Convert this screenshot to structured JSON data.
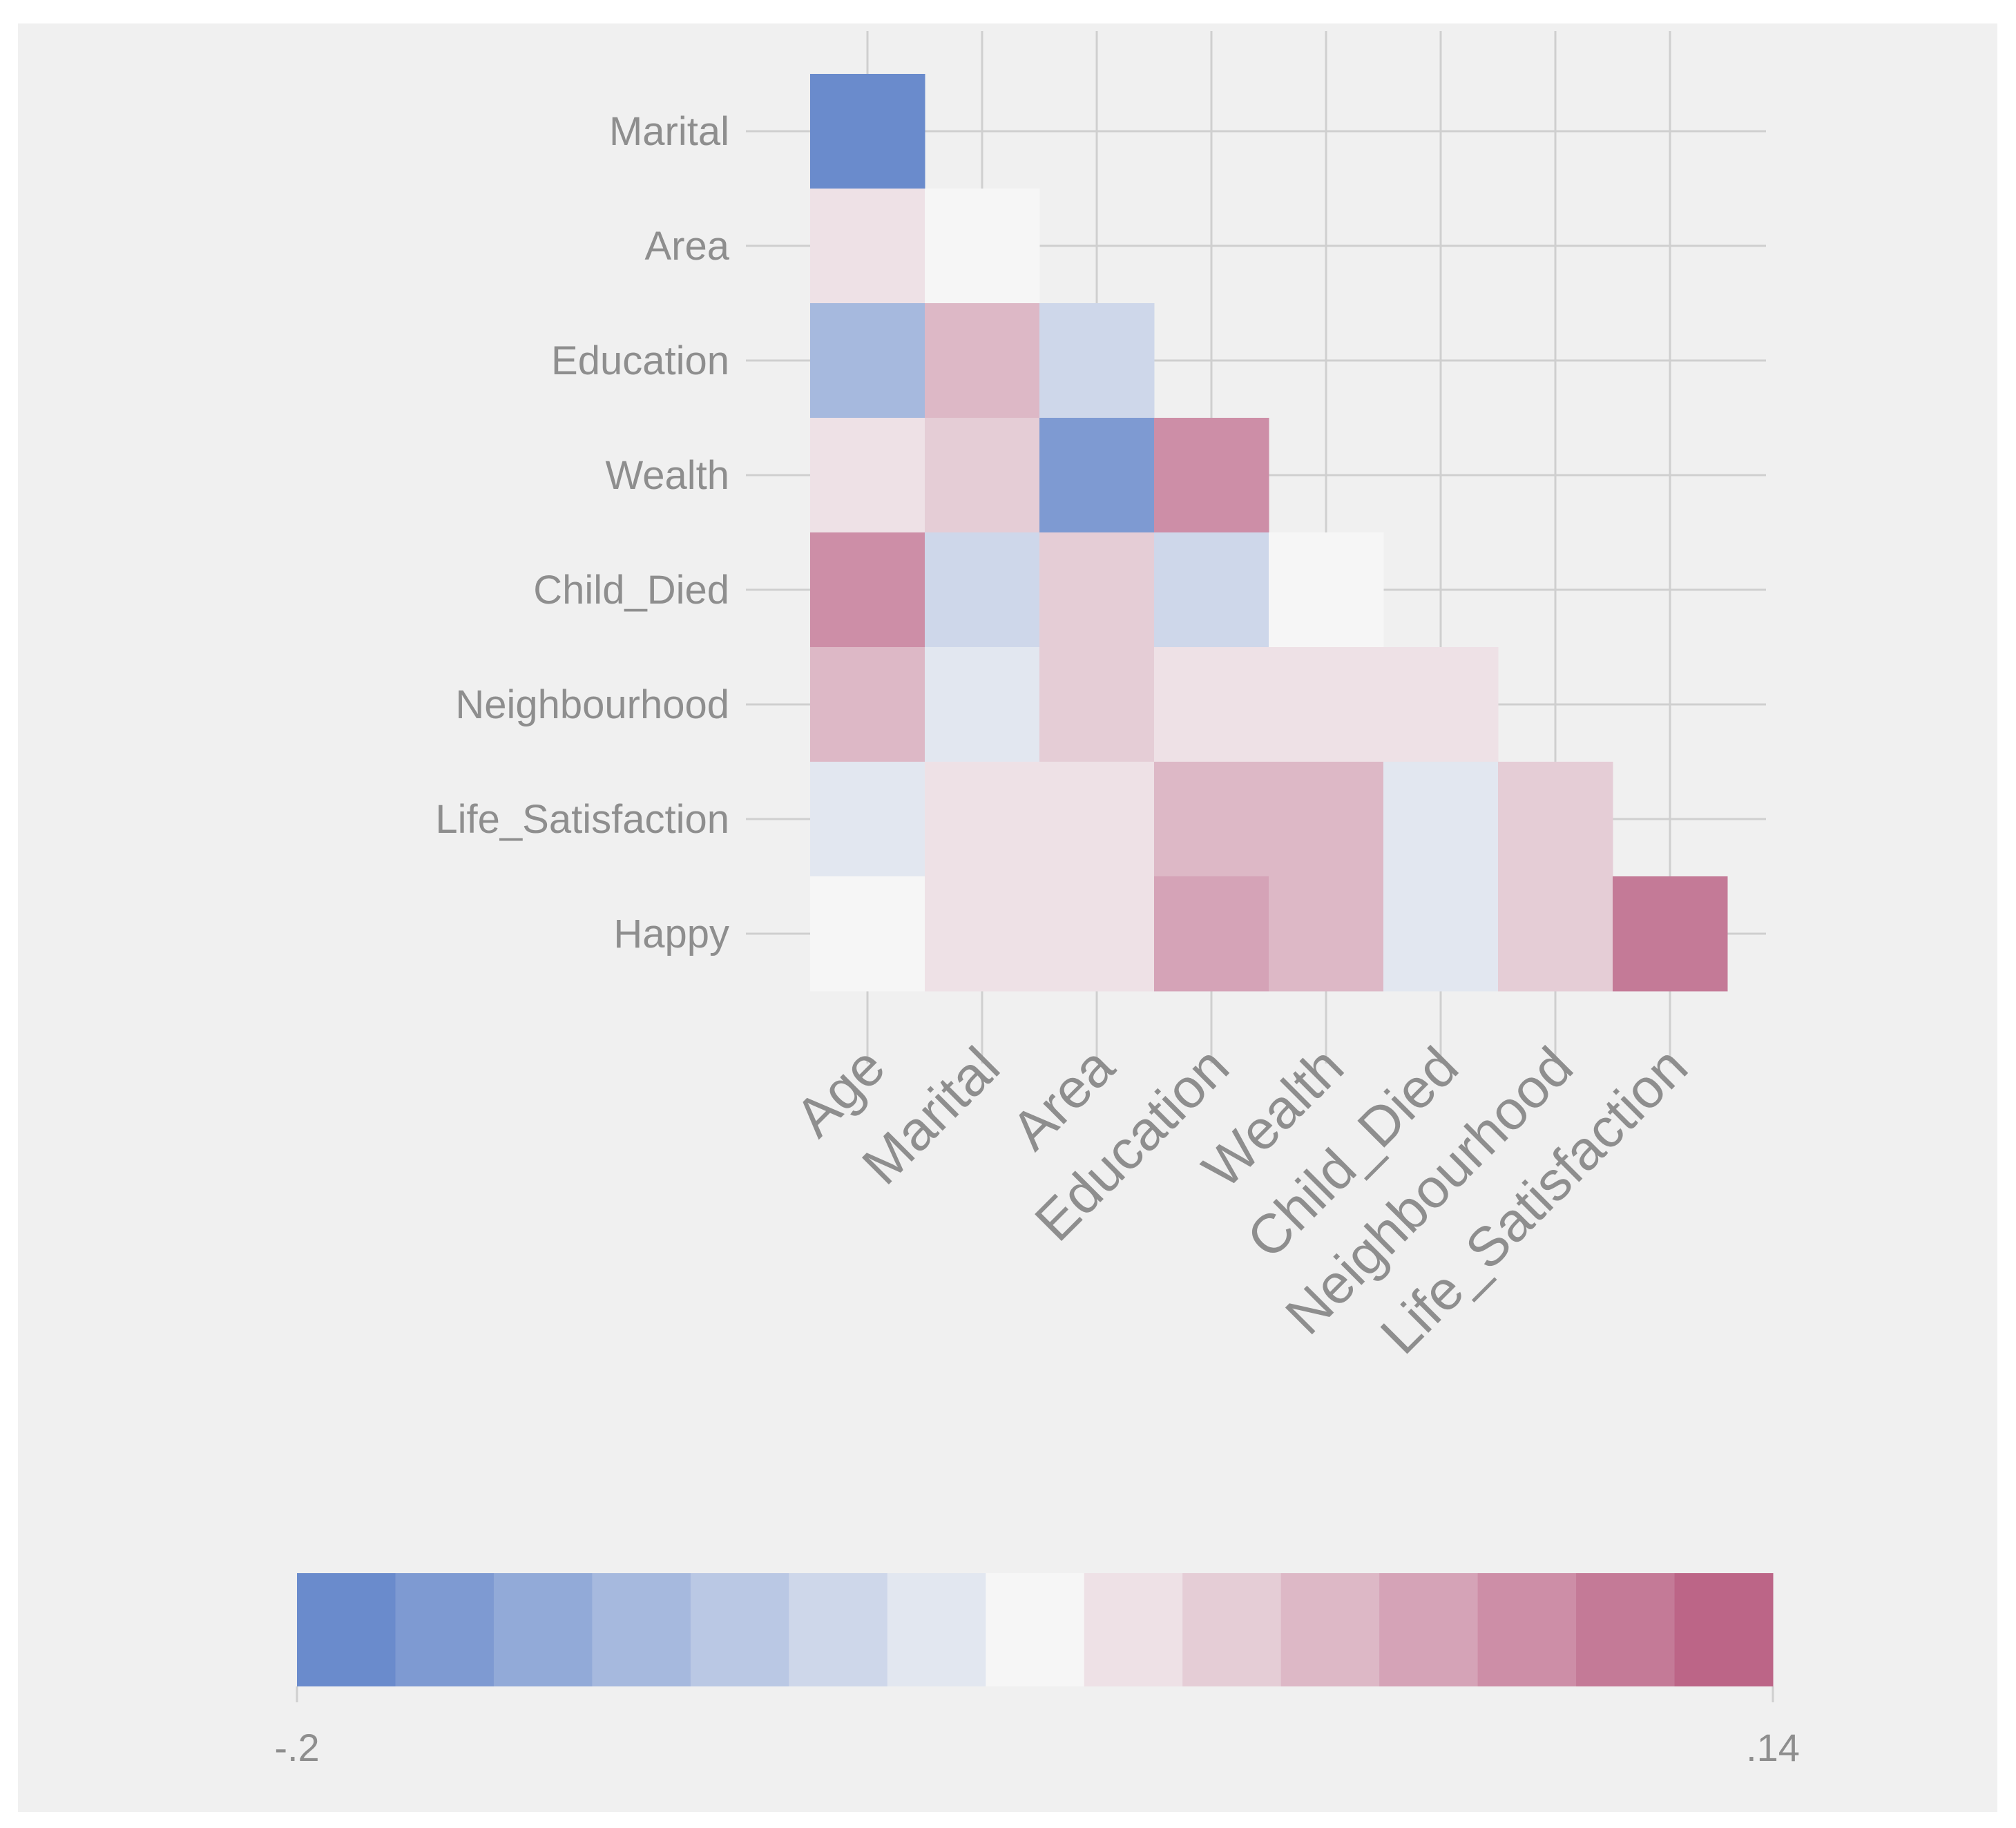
{
  "chart_data": {
    "type": "heatmap",
    "title": "",
    "row_labels": [
      "Marital",
      "Area",
      "Education",
      "Wealth",
      "Child_Died",
      "Neighbourhood",
      "Life_Satisfaction",
      "Happy"
    ],
    "column_labels": [
      "Age",
      "Marital",
      "Area",
      "Education",
      "Wealth",
      "Child_Died",
      "Neighbourhood",
      "Life_Satisfaction"
    ],
    "matrix": [
      [
        -0.2
      ],
      [
        0.02,
        0.0
      ],
      [
        -0.1,
        0.06,
        -0.06
      ],
      [
        0.02,
        0.04,
        -0.17,
        0.1
      ],
      [
        0.1,
        -0.06,
        0.04,
        -0.06,
        0.0
      ],
      [
        0.06,
        -0.03,
        0.04,
        0.02,
        0.02,
        0.02
      ],
      [
        -0.03,
        0.02,
        0.02,
        0.06,
        0.06,
        -0.03,
        0.04
      ],
      [
        0.0,
        0.02,
        0.02,
        0.08,
        0.06,
        -0.03,
        0.04,
        0.13
      ]
    ],
    "colorscale": {
      "min": -0.2,
      "max": 0.14,
      "min_label": "-.2",
      "max_label": ".14",
      "bins": 15,
      "low_color": "#6a8bcc",
      "mid_color": "#f6f6f6",
      "high_color": "#bc6587",
      "orientation": "horizontal",
      "placement": "bottom"
    },
    "grid": true
  },
  "colors": {
    "plot_background": "#f0f0f0",
    "grid_line": "#cfcfcf",
    "label_text": "#8e8e8e"
  }
}
